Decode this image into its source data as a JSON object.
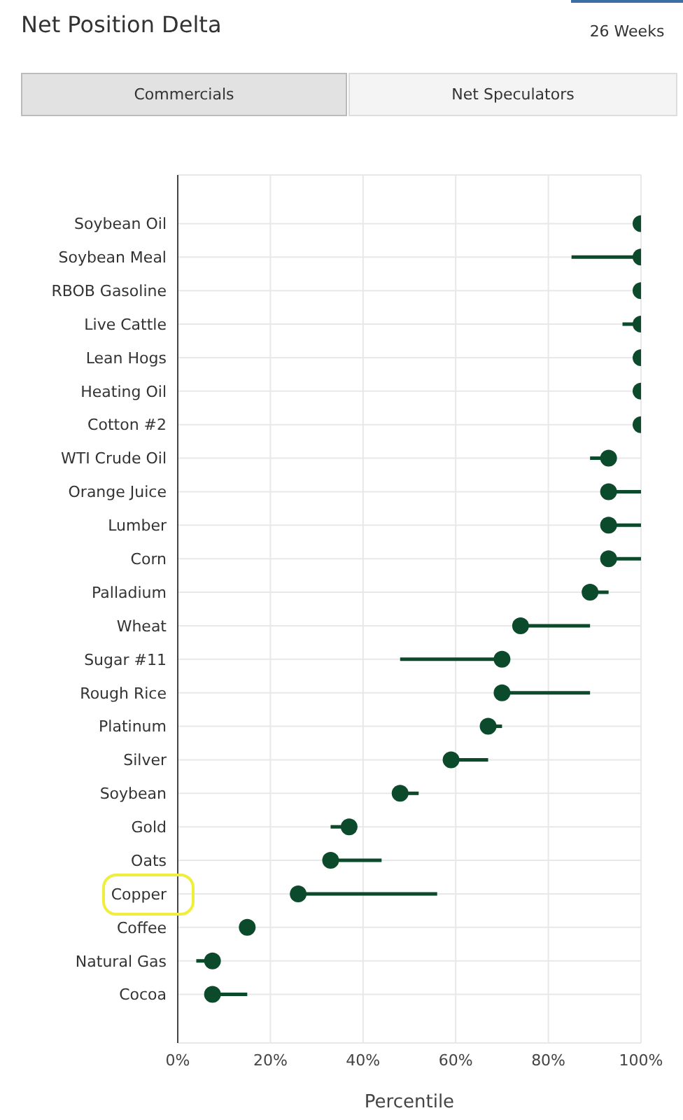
{
  "chart_data": {
    "type": "scatter",
    "orientation": "horizontal",
    "title": "Net Position Delta",
    "xlabel": "Percentile",
    "annotations": [
      "26 Weeks",
      "Commercials",
      "Net Speculators"
    ],
    "categories": [
      "Soybean Oil",
      "Soybean Meal",
      "RBOB Gasoline",
      "Live Cattle",
      "Lean Hogs",
      "Heating Oil",
      "Cotton #2",
      "WTI Crude Oil",
      "Orange Juice",
      "Lumber",
      "Corn",
      "Palladium",
      "Wheat",
      "Sugar #11",
      "Rough Rice",
      "Platinum",
      "Silver",
      "Soybean",
      "Gold",
      "Oats",
      "Copper",
      "Coffee",
      "Natural Gas",
      "Cocoa"
    ],
    "values": [
      100,
      100,
      100,
      100,
      100,
      100,
      100,
      93,
      93,
      93,
      93,
      89,
      74,
      70,
      70,
      67,
      59,
      48,
      37,
      33,
      26,
      15,
      7.5,
      7.5
    ],
    "errors": [
      null,
      [
        85,
        100
      ],
      null,
      [
        96,
        100
      ],
      null,
      null,
      null,
      [
        89,
        93
      ],
      [
        93,
        100
      ],
      [
        93,
        100
      ],
      [
        93,
        100
      ],
      [
        89,
        93
      ],
      [
        74,
        89
      ],
      [
        48,
        70
      ],
      [
        70,
        89
      ],
      [
        67,
        70
      ],
      [
        59,
        67
      ],
      [
        48,
        52
      ],
      [
        33,
        37
      ],
      [
        33,
        44
      ],
      [
        26,
        56
      ],
      null,
      [
        4,
        7.5
      ],
      [
        7.5,
        15
      ]
    ],
    "color": "#0b4a2a",
    "marker": "circle",
    "xlim": [
      0,
      100
    ],
    "xticks": [
      {
        "value": 0,
        "label": "0%"
      },
      {
        "value": 20,
        "label": "20%"
      },
      {
        "value": 40,
        "label": "40%"
      },
      {
        "value": 60,
        "label": "60%"
      },
      {
        "value": 80,
        "label": "80%"
      },
      {
        "value": 100,
        "label": "100%"
      }
    ],
    "grid": true
  }
}
